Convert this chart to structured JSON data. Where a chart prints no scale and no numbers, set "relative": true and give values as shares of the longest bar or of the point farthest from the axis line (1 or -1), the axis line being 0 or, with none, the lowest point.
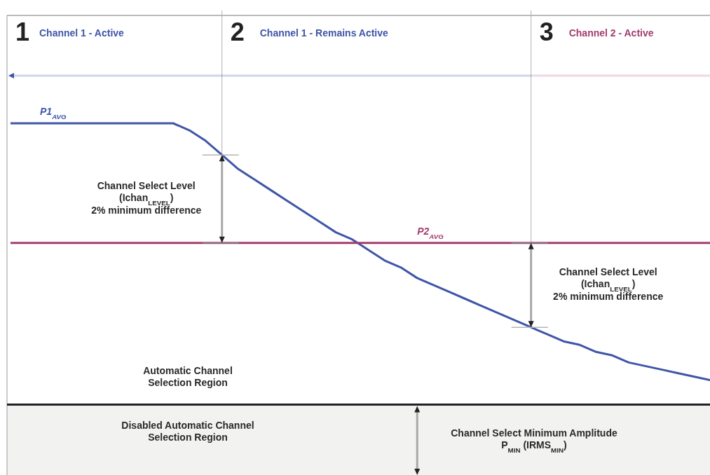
{
  "chart_data": {
    "type": "line",
    "relative": true,
    "line_style": "solid",
    "categories": [
      null,
      null,
      null,
      null,
      null,
      null,
      null,
      null,
      null,
      null,
      null,
      null,
      null,
      null,
      null,
      null,
      null,
      null,
      null,
      null,
      null,
      null,
      null,
      null,
      null,
      null,
      null,
      null,
      null,
      null,
      null,
      null,
      null,
      null,
      null,
      null,
      null,
      null,
      null,
      null,
      null,
      null,
      null,
      null
    ],
    "series": [
      {
        "name": "P1$_{AVG}$",
        "color": "#3f56a8",
        "values": [
          1,
          1,
          1,
          1,
          1,
          1,
          1,
          1,
          1,
          1,
          1,
          0.98,
          0.95,
          0.91,
          0.87,
          0.84,
          0.81,
          0.78,
          0.75,
          0.72,
          0.69,
          0.67,
          0.64,
          0.61,
          0.59,
          0.56,
          0.54,
          0.52,
          0.5,
          0.48,
          0.46,
          0.44,
          0.42,
          0.4,
          0.38,
          0.37,
          0.35,
          0.34,
          0.32,
          0.31,
          0.3,
          0.29,
          0.28,
          0.27
        ]
      },
      {
        "name": "P2$_{AVG}$",
        "color": "#a33d6e",
        "values": [
          0.66,
          0.66,
          0.66,
          0.66,
          0.66,
          0.66,
          0.66,
          0.66,
          0.66,
          0.66,
          0.66,
          0.66,
          0.66,
          0.66,
          0.66,
          0.66,
          0.66,
          0.66,
          0.66,
          0.66,
          0.66,
          0.66,
          0.66,
          0.66,
          0.66,
          0.66,
          0.66,
          0.66,
          0.66,
          0.66,
          0.66,
          0.66,
          0.66,
          0.66,
          0.66,
          0.66,
          0.66,
          0.66,
          0.66,
          0.66,
          0.66,
          0.66,
          0.66,
          0.66
        ]
      }
    ],
    "ref_lines": [
      {
        "axis": "y",
        "value": 0.2,
        "color": "#222222",
        "label": "Channel Select Minimum Amplitude\nP$_{MIN}$ (IRMS$_{MIN}$)"
      }
    ],
    "bands": [
      {
        "axis": "y",
        "from": 0,
        "to": 0.2,
        "color": "#f2f2f1",
        "label": "Disabled Automatic Channel\nSelection Region"
      }
    ],
    "annotations": [
      "1",
      "Channel 1 - Active",
      "2",
      "Channel 1 - Remains Active",
      "3",
      "Channel 2 - Active",
      "Automatic Channel\nSelection Region",
      "Channel Select Level\n(Ichan$_{LEVEL}$)\n2% minimum difference",
      "Channel Select Level\n(Ichan$_{LEVEL}$)\n2% minimum difference"
    ]
  }
}
